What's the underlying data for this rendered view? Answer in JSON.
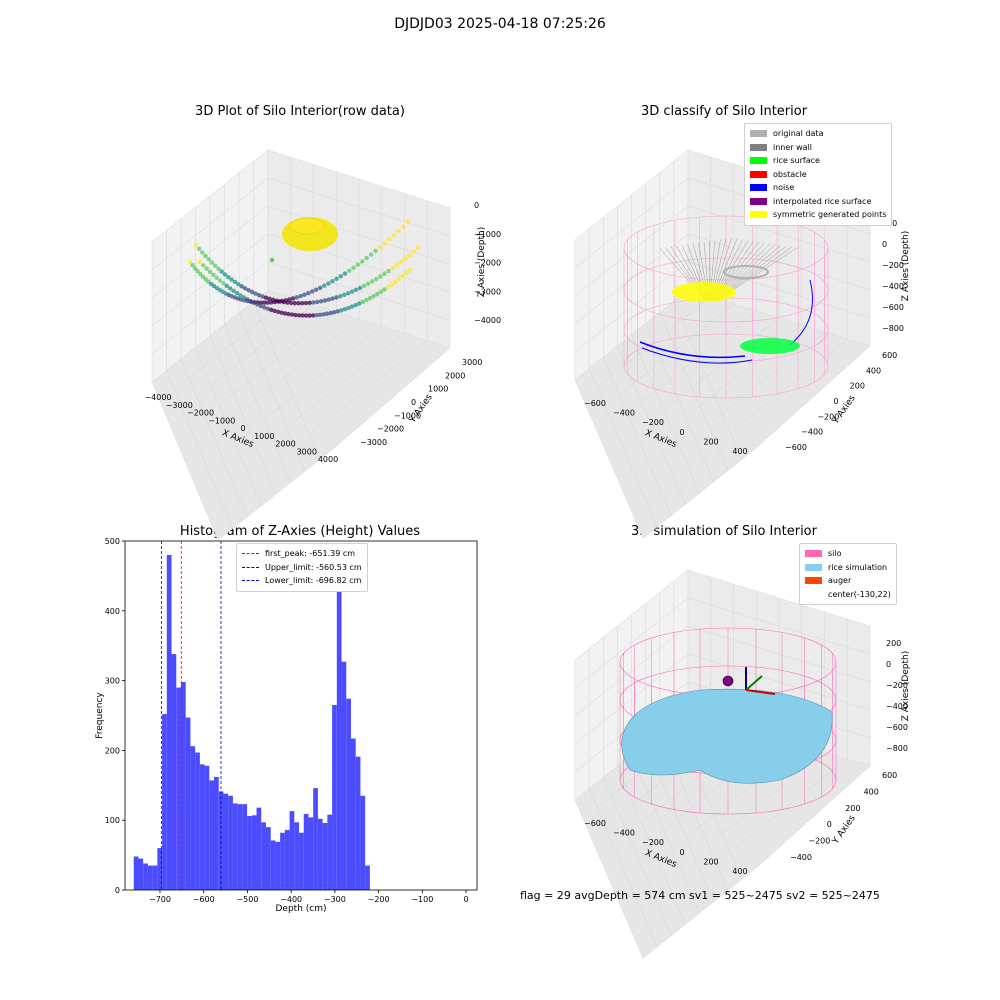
{
  "figure_title": "DJDJD03 2025-04-18 07:25:26",
  "status_line": "flag = 29  avgDepth = 574 cm  sv1 = 525~2475  sv2 = 525~2475",
  "colors": {
    "bar": "#4c4cff",
    "first_peak": "#ff0000",
    "limit": "#0000cc",
    "silo": "#ff69b4",
    "rice": "#87ceeb",
    "auger": "#ff4500"
  },
  "panels": {
    "raw": {
      "title": "3D Plot of Silo Interior(row data)",
      "xlabel": "X Axies",
      "ylabel": "Y Axies",
      "zlabel": "Z Axies (Depth)",
      "x_ticks": [
        "−4000",
        "−3000",
        "−2000",
        "−1000",
        "0",
        "1000",
        "2000",
        "3000",
        "4000"
      ],
      "y_ticks": [
        "3000",
        "2000",
        "1000",
        "0",
        "−1000",
        "−2000",
        "−3000"
      ],
      "z_ticks": [
        "0",
        "−1000",
        "−2000",
        "−3000",
        "−4000"
      ]
    },
    "classify": {
      "title": "3D classify of Silo Interior",
      "xlabel": "X Axies",
      "ylabel": "Y Axies",
      "zlabel": "Z Axies (Depth)",
      "x_ticks": [
        "−600",
        "−400",
        "−200",
        "0",
        "200",
        "400"
      ],
      "y_ticks": [
        "600",
        "400",
        "200",
        "0",
        "−200",
        "−400",
        "−600"
      ],
      "z_ticks": [
        "200",
        "0",
        "−200",
        "−400",
        "−600",
        "−800"
      ],
      "legend": [
        {
          "label": "original data",
          "color": "#b0b0b0"
        },
        {
          "label": "inner wall",
          "color": "#808080"
        },
        {
          "label": "rice surface",
          "color": "#00ff00"
        },
        {
          "label": "obstacle",
          "color": "#ff0000"
        },
        {
          "label": "noise",
          "color": "#0000ff"
        },
        {
          "label": "interpolated rice surface",
          "color": "#800080"
        },
        {
          "label": "symmetric generated points",
          "color": "#ffff00"
        }
      ]
    },
    "simulation": {
      "title": "3D simulation of Silo Interior",
      "xlabel": "X Axies",
      "ylabel": "Y Axies",
      "zlabel": "Z Axies (Depth)",
      "x_ticks": [
        "−600",
        "−400",
        "−200",
        "0",
        "200",
        "400"
      ],
      "y_ticks": [
        "600",
        "400",
        "200",
        "0",
        "−200",
        "−400"
      ],
      "z_ticks": [
        "200",
        "0",
        "−200",
        "−400",
        "−600",
        "−800"
      ],
      "legend": [
        {
          "label": "silo",
          "color": "#ff69b4"
        },
        {
          "label": "rice simulation",
          "color": "#87ceeb"
        },
        {
          "label": "auger",
          "color": "#ff4500"
        },
        {
          "label": "center(-130,22)",
          "color": ""
        }
      ]
    }
  },
  "chart_data": {
    "type": "bar",
    "title": "Histogram of Z-Axies (Height) Values",
    "xlabel": "Depth (cm)",
    "ylabel": "Frequency",
    "xlim": [
      -780,
      25
    ],
    "ylim": [
      0,
      500
    ],
    "x_ticks": [
      -700,
      -600,
      -500,
      -400,
      -300,
      -200,
      -100,
      0
    ],
    "x_tick_labels": [
      "−700",
      "−600",
      "−500",
      "−400",
      "−300",
      "−200",
      "−100",
      "0"
    ],
    "y_ticks": [
      0,
      100,
      200,
      300,
      400,
      500
    ],
    "bin_edges_start": -760,
    "bin_width": 10.8,
    "values": [
      48,
      45,
      38,
      35,
      35,
      60,
      252,
      480,
      338,
      290,
      298,
      247,
      206,
      197,
      180,
      178,
      157,
      162,
      141,
      138,
      135,
      124,
      123,
      123,
      106,
      107,
      118,
      97,
      90,
      71,
      69,
      82,
      86,
      113,
      97,
      82,
      109,
      104,
      146,
      102,
      96,
      108,
      265,
      440,
      327,
      274,
      217,
      191,
      135,
      35
    ],
    "reference_lines": [
      {
        "name": "first_peak",
        "value": -651.39,
        "label": "first_peak: -651.39 cm",
        "color": "#ff0000"
      },
      {
        "name": "upper_limit",
        "value": -560.53,
        "label": "Upper_limit: -560.53 cm",
        "color": "#0000cc"
      },
      {
        "name": "lower_limit",
        "value": -696.82,
        "label": "Lower_limit: -696.82 cm",
        "color": "#0000cc"
      }
    ],
    "legend_position": "upper-center"
  }
}
